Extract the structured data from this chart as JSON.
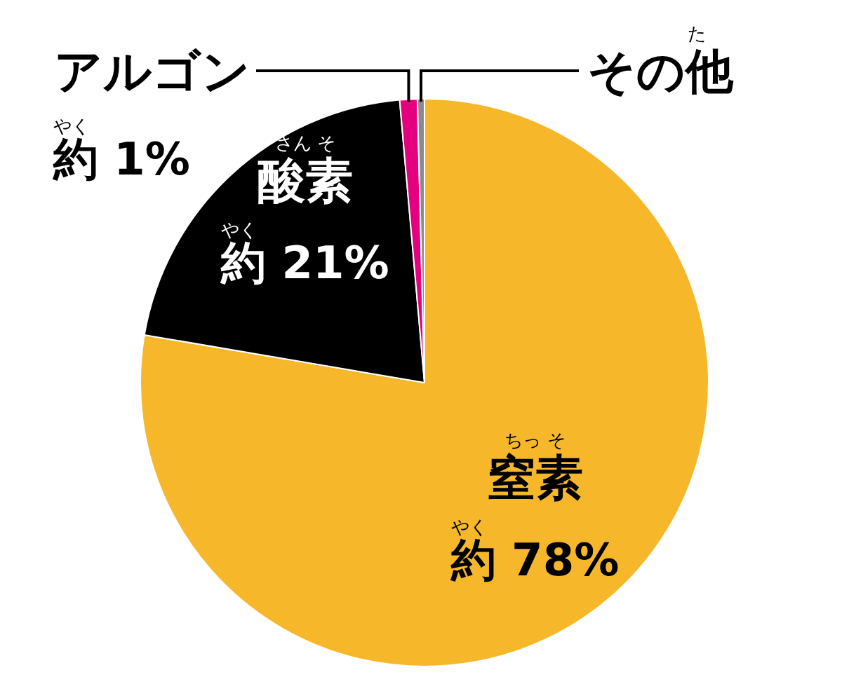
{
  "chart_data": {
    "type": "pie",
    "categories": [
      "窒素",
      "酸素",
      "アルゴン",
      "その他"
    ],
    "values": [
      78,
      21,
      1,
      0.4
    ],
    "colors": [
      "#f6b72b",
      "#000000",
      "#e4007f",
      "#8a8a8a"
    ],
    "value_labels": [
      "約 78%",
      "約 21%",
      "約 1%",
      null
    ],
    "annotations": [
      "ちっ そ",
      "さん そ",
      "やく",
      "た"
    ],
    "legend": false
  }
}
